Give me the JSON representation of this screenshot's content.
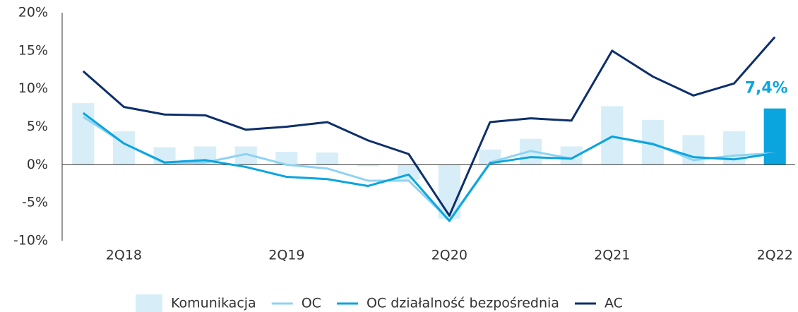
{
  "chart_data": {
    "type": "bar-line",
    "categories": [
      null,
      "2Q18",
      null,
      null,
      null,
      "2Q19",
      null,
      null,
      null,
      "2Q20",
      null,
      null,
      null,
      "2Q21",
      null,
      null,
      null,
      "2Q22"
    ],
    "series": [
      {
        "name": "Komunikacja",
        "kind": "bar",
        "color": "#d7eef8",
        "colors": [
          "#d7eef8",
          "#d7eef8",
          "#d7eef8",
          "#d7eef8",
          "#d7eef8",
          "#d7eef8",
          "#d7eef8",
          "#d7eef8",
          "#d7eef8",
          "#d7eef8",
          "#d7eef8",
          "#d7eef8",
          "#d7eef8",
          "#d7eef8",
          "#d7eef8",
          "#d7eef8",
          "#d7eef8",
          "#0aa5df"
        ],
        "values": [
          8.1,
          4.4,
          2.3,
          2.4,
          2.4,
          1.7,
          1.6,
          -0.2,
          -2.0,
          -7.1,
          2.0,
          3.4,
          2.4,
          7.7,
          5.9,
          3.9,
          4.4,
          7.4
        ],
        "value_labels": [
          null,
          null,
          null,
          null,
          null,
          null,
          null,
          null,
          null,
          null,
          null,
          null,
          null,
          null,
          null,
          null,
          null,
          "7,4%"
        ]
      },
      {
        "name": "OC",
        "kind": "line",
        "color": "#8fd3f2",
        "values": [
          6.3,
          2.8,
          0.2,
          0.3,
          1.4,
          0.0,
          -0.5,
          -2.1,
          -2.1,
          -7.3,
          0.3,
          1.8,
          0.8,
          3.7,
          2.8,
          0.6,
          1.2,
          1.5
        ]
      },
      {
        "name": "OC działalność bezpośrednia",
        "kind": "line",
        "color": "#0aa5df",
        "values": [
          6.8,
          2.8,
          0.3,
          0.6,
          -0.3,
          -1.6,
          -1.9,
          -2.8,
          -1.3,
          -7.4,
          0.2,
          1.0,
          0.8,
          3.7,
          2.7,
          1.0,
          0.7,
          1.5
        ]
      },
      {
        "name": "AC",
        "kind": "line",
        "color": "#0d2f6b",
        "values": [
          12.3,
          7.6,
          6.6,
          6.5,
          4.6,
          5.0,
          5.6,
          3.2,
          1.4,
          -6.7,
          5.6,
          6.1,
          5.8,
          15.0,
          11.6,
          9.1,
          10.7,
          16.8
        ]
      }
    ],
    "ylim": [
      -10,
      20
    ],
    "yticks": [
      {
        "value": -10,
        "label": "-10%"
      },
      {
        "value": -5,
        "label": "-5%"
      },
      {
        "value": 0,
        "label": "0%"
      },
      {
        "value": 5,
        "label": "5%"
      },
      {
        "value": 10,
        "label": "10%"
      },
      {
        "value": 15,
        "label": "15%"
      },
      {
        "value": 20,
        "label": "20%"
      }
    ],
    "legend": "bottom"
  }
}
